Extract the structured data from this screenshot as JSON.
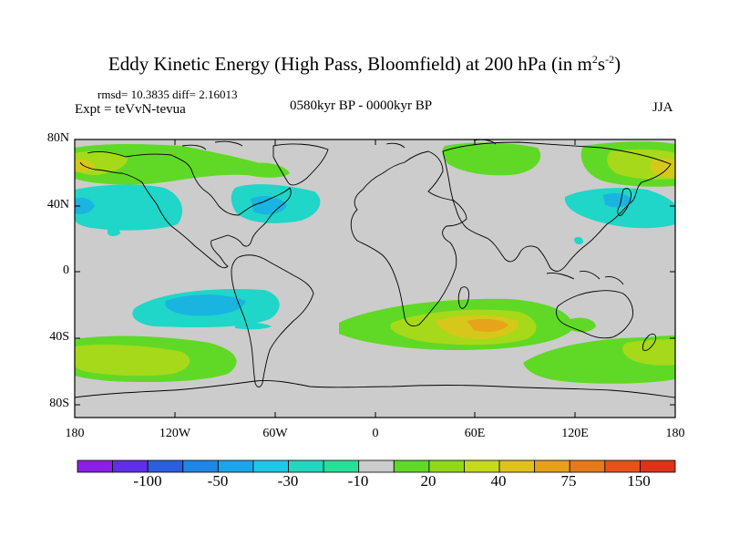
{
  "title_main": "Eddy Kinetic Energy (High Pass, Bloomfield) at 200 hPa (in m",
  "title_sup1": "2",
  "title_mid": "s",
  "title_sup2": "-2",
  "title_end": ")",
  "stats": "rmsd= 10.3835 diff= 2.16013",
  "experiment": "Expt = teVvN-tevua",
  "period": "0580kyr BP - 0000kyr BP",
  "season": "JJA",
  "lat_ticks": [
    "80N",
    "40N",
    "0",
    "40S",
    "80S"
  ],
  "lon_ticks": [
    "180",
    "120W",
    "60W",
    "0",
    "60E",
    "120E",
    "180"
  ],
  "colorbar": {
    "labels": [
      "-100",
      "-50",
      "-30",
      "-10",
      "20",
      "40",
      "75",
      "150"
    ],
    "colors": [
      "#8c1fe6",
      "#5f2ee6",
      "#2b5fe0",
      "#1f86e6",
      "#1aa6e8",
      "#1fc8e6",
      "#23d6c0",
      "#26e09a",
      "#cccccc",
      "#5fd926",
      "#8fd919",
      "#c6d91a",
      "#e0c21a",
      "#e6a01a",
      "#e67a1a",
      "#e6521a",
      "#e0321a"
    ]
  },
  "map_colors": {
    "land_and_neutral": "#cccccc",
    "cyan": "#1fd6c8",
    "cyan_dark": "#1ab4e0",
    "green": "#5fd926",
    "yellowgreen": "#a6d91a",
    "yellow": "#d6c81a",
    "orange": "#e6a41a"
  }
}
